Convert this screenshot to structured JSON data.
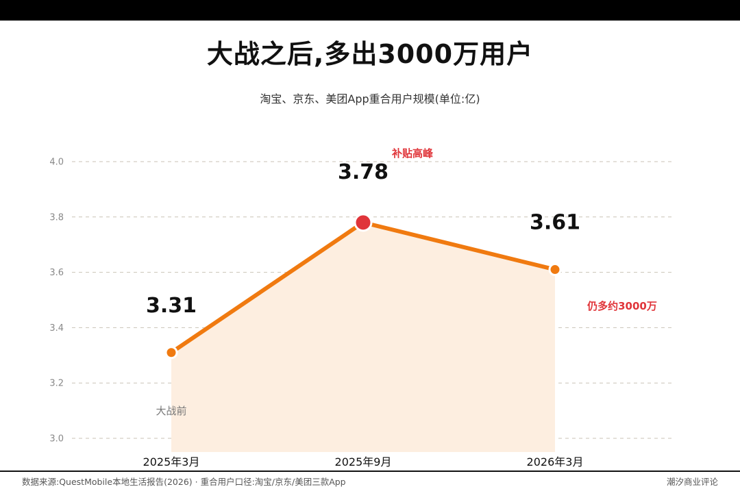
{
  "title": "大战之后,多出3000万用户",
  "subtitle": "淘宝、京东、美团App重合用户规模(单位:亿)",
  "footer": {
    "source": "数据来源:QuestMobile本地生活报告(2026) · 重合用户口径:淘宝/京东/美团三款App",
    "brand": "潮汐商业评论"
  },
  "chart_data": {
    "type": "line",
    "categories": [
      "2025年3月",
      "2025年9月",
      "2026年3月"
    ],
    "values": [
      3.31,
      3.78,
      3.61
    ],
    "value_labels": [
      "3.31",
      "3.78",
      "3.61"
    ],
    "y_ticks": [
      "3.0",
      "3.2",
      "3.4",
      "3.6",
      "3.8",
      "4.0"
    ],
    "ylim": [
      3.0,
      4.0
    ],
    "grid": true,
    "annotations": {
      "before": "大战前",
      "peak": "补贴高峰",
      "after": "仍多约3000万"
    },
    "colors": {
      "line": "#f07a10",
      "peak_point": "#e0353a",
      "annotation": "#e0353a",
      "area": "#fdeee0",
      "grid": "#c9c2b6"
    }
  }
}
